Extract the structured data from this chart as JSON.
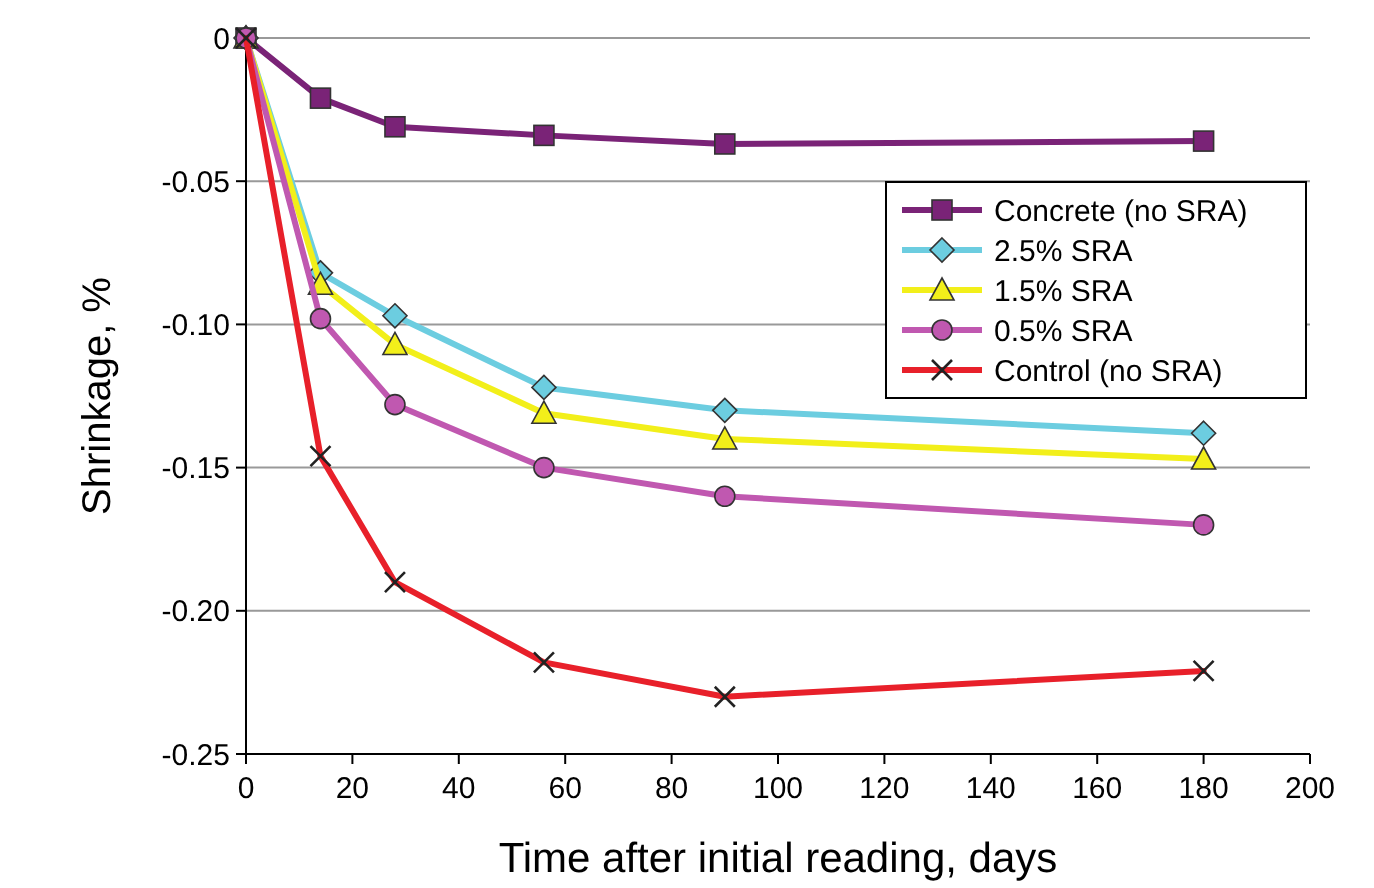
{
  "chart_data": {
    "type": "line",
    "xlabel": "Time after initial reading, days",
    "ylabel": "Shrinkage, %",
    "xlim": [
      0,
      200
    ],
    "xticks": [
      0,
      20,
      40,
      60,
      80,
      100,
      120,
      140,
      160,
      180,
      200
    ],
    "ylim": [
      -0.25,
      0
    ],
    "yticks": [
      {
        "value": -0.25,
        "label": "-0.25"
      },
      {
        "value": -0.2,
        "label": "-0.20"
      },
      {
        "value": -0.15,
        "label": "-0.15"
      },
      {
        "value": -0.1,
        "label": "-0.10"
      },
      {
        "value": -0.05,
        "label": "-0.05"
      },
      0
    ],
    "grid": "y",
    "legend": "top right",
    "line_style": "solid",
    "x": [
      0,
      14,
      28,
      56,
      90,
      180
    ],
    "series": [
      {
        "name": "Concrete (no SRA)",
        "color": "#7a2377",
        "marker": "square",
        "values": [
          0,
          -0.021,
          -0.031,
          -0.034,
          -0.037,
          -0.036
        ]
      },
      {
        "name": "2.5% SRA",
        "color": "#6ccde0",
        "marker": "diamond",
        "values": [
          0,
          -0.082,
          -0.097,
          -0.122,
          -0.13,
          -0.138
        ]
      },
      {
        "name": "1.5% SRA",
        "color": "#f2ef1a",
        "marker": "triangle",
        "values": [
          0,
          -0.086,
          -0.107,
          -0.131,
          -0.14,
          -0.147
        ]
      },
      {
        "name": "0.5% SRA",
        "color": "#c058b0",
        "marker": "circle",
        "values": [
          0,
          -0.098,
          -0.128,
          -0.15,
          -0.16,
          -0.17
        ]
      },
      {
        "name": "Control (no SRA)",
        "color": "#e8202a",
        "marker": "cross",
        "values": [
          0,
          -0.146,
          -0.19,
          -0.218,
          -0.23,
          -0.221
        ]
      }
    ]
  }
}
